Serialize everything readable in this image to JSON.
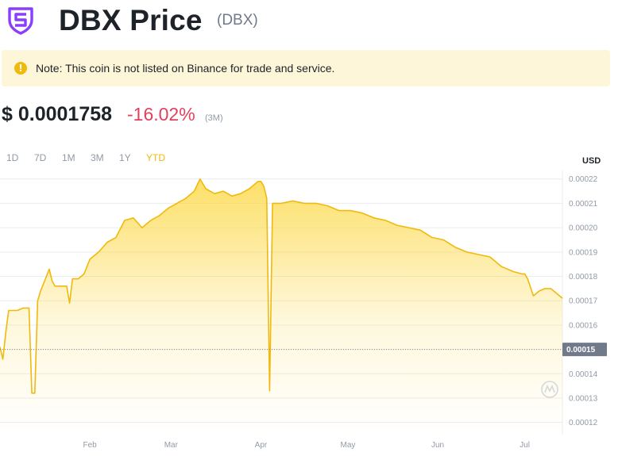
{
  "header": {
    "logo_icon": "dbx-shield-logo-icon",
    "logo_color": "#8a3ffc",
    "title": "DBX Price",
    "ticker": "(DBX)"
  },
  "note": {
    "icon": "exclamation-icon",
    "text": "Note: This coin is not listed on Binance for trade and service."
  },
  "price": {
    "value": "$ 0.0001758",
    "change": "-16.02%",
    "period": "(3M)"
  },
  "range_tabs": [
    {
      "label": "1D",
      "active": false
    },
    {
      "label": "7D",
      "active": false
    },
    {
      "label": "1M",
      "active": false
    },
    {
      "label": "3M",
      "active": false
    },
    {
      "label": "1Y",
      "active": false
    },
    {
      "label": "YTD",
      "active": true
    }
  ],
  "currency": "USD",
  "chart_data": {
    "type": "area",
    "line_color": "#f0b90b",
    "fill_color": "#fcd535",
    "grid": true,
    "ylim": [
      0.000115,
      0.0002235
    ],
    "y_ticks": [
      "0.00022",
      "0.00021",
      "0.00020",
      "0.00019",
      "0.00018",
      "0.00017",
      "0.00016",
      "0.00015",
      "0.00014",
      "0.00013",
      "0.00012"
    ],
    "reference_line": {
      "value": 0.00015,
      "label": "0.00015"
    },
    "x_ticks": [
      {
        "label": "Feb",
        "date": "2022-02-01"
      },
      {
        "label": "Mar",
        "date": "2022-03-01"
      },
      {
        "label": "Apr",
        "date": "2022-04-01"
      },
      {
        "label": "May",
        "date": "2022-05-01"
      },
      {
        "label": "Jun",
        "date": "2022-06-01"
      },
      {
        "label": "Jul",
        "date": "2022-07-01"
      }
    ],
    "x_range": [
      "2022-01-01",
      "2022-07-14"
    ],
    "series": [
      {
        "dates": [
          "2022-01-01",
          "2022-01-02",
          "2022-01-03",
          "2022-01-04",
          "2022-01-05",
          "2022-01-07",
          "2022-01-09",
          "2022-01-11",
          "2022-01-12",
          "2022-01-13",
          "2022-01-14",
          "2022-01-15",
          "2022-01-17",
          "2022-01-18",
          "2022-01-19",
          "2022-01-20",
          "2022-01-22",
          "2022-01-24",
          "2022-01-25",
          "2022-01-26",
          "2022-01-28",
          "2022-01-30",
          "2022-02-01",
          "2022-02-04",
          "2022-02-07",
          "2022-02-10",
          "2022-02-13",
          "2022-02-16",
          "2022-02-19",
          "2022-02-22",
          "2022-02-25",
          "2022-02-28",
          "2022-03-03",
          "2022-03-06",
          "2022-03-09",
          "2022-03-11",
          "2022-03-13",
          "2022-03-16",
          "2022-03-19",
          "2022-03-22",
          "2022-03-25",
          "2022-03-28",
          "2022-03-31",
          "2022-04-01",
          "2022-04-02",
          "2022-04-03",
          "2022-04-04",
          "2022-04-05",
          "2022-04-06",
          "2022-04-08",
          "2022-04-12",
          "2022-04-16",
          "2022-04-20",
          "2022-04-24",
          "2022-04-28",
          "2022-05-02",
          "2022-05-06",
          "2022-05-10",
          "2022-05-14",
          "2022-05-18",
          "2022-05-22",
          "2022-05-26",
          "2022-05-30",
          "2022-06-03",
          "2022-06-07",
          "2022-06-11",
          "2022-06-15",
          "2022-06-19",
          "2022-06-23",
          "2022-06-25",
          "2022-06-27",
          "2022-06-30",
          "2022-07-01",
          "2022-07-02",
          "2022-07-04",
          "2022-07-06",
          "2022-07-08",
          "2022-07-10",
          "2022-07-12",
          "2022-07-14"
        ],
        "values": [
          0.000151,
          0.000146,
          0.000157,
          0.000166,
          0.000166,
          0.000166,
          0.000167,
          0.000167,
          0.000132,
          0.000132,
          0.00017,
          0.000174,
          0.00018,
          0.000183,
          0.000178,
          0.000176,
          0.000176,
          0.000176,
          0.000169,
          0.000179,
          0.000179,
          0.000181,
          0.000187,
          0.00019,
          0.000194,
          0.000196,
          0.000203,
          0.000204,
          0.0002,
          0.000203,
          0.000205,
          0.000208,
          0.00021,
          0.000212,
          0.000215,
          0.00022,
          0.000216,
          0.000214,
          0.000215,
          0.000213,
          0.000214,
          0.000216,
          0.000219,
          0.000219,
          0.000217,
          0.000212,
          0.000133,
          0.00021,
          0.00021,
          0.00021,
          0.000211,
          0.00021,
          0.00021,
          0.000209,
          0.000207,
          0.000207,
          0.000206,
          0.000204,
          0.000203,
          0.000201,
          0.0002,
          0.000199,
          0.000196,
          0.000195,
          0.000192,
          0.00019,
          0.000189,
          0.000188,
          0.000184,
          0.000183,
          0.000182,
          0.000181,
          0.000181,
          0.000179,
          0.000172,
          0.000174,
          0.000175,
          0.000175,
          0.000173,
          0.000171
        ]
      }
    ]
  }
}
